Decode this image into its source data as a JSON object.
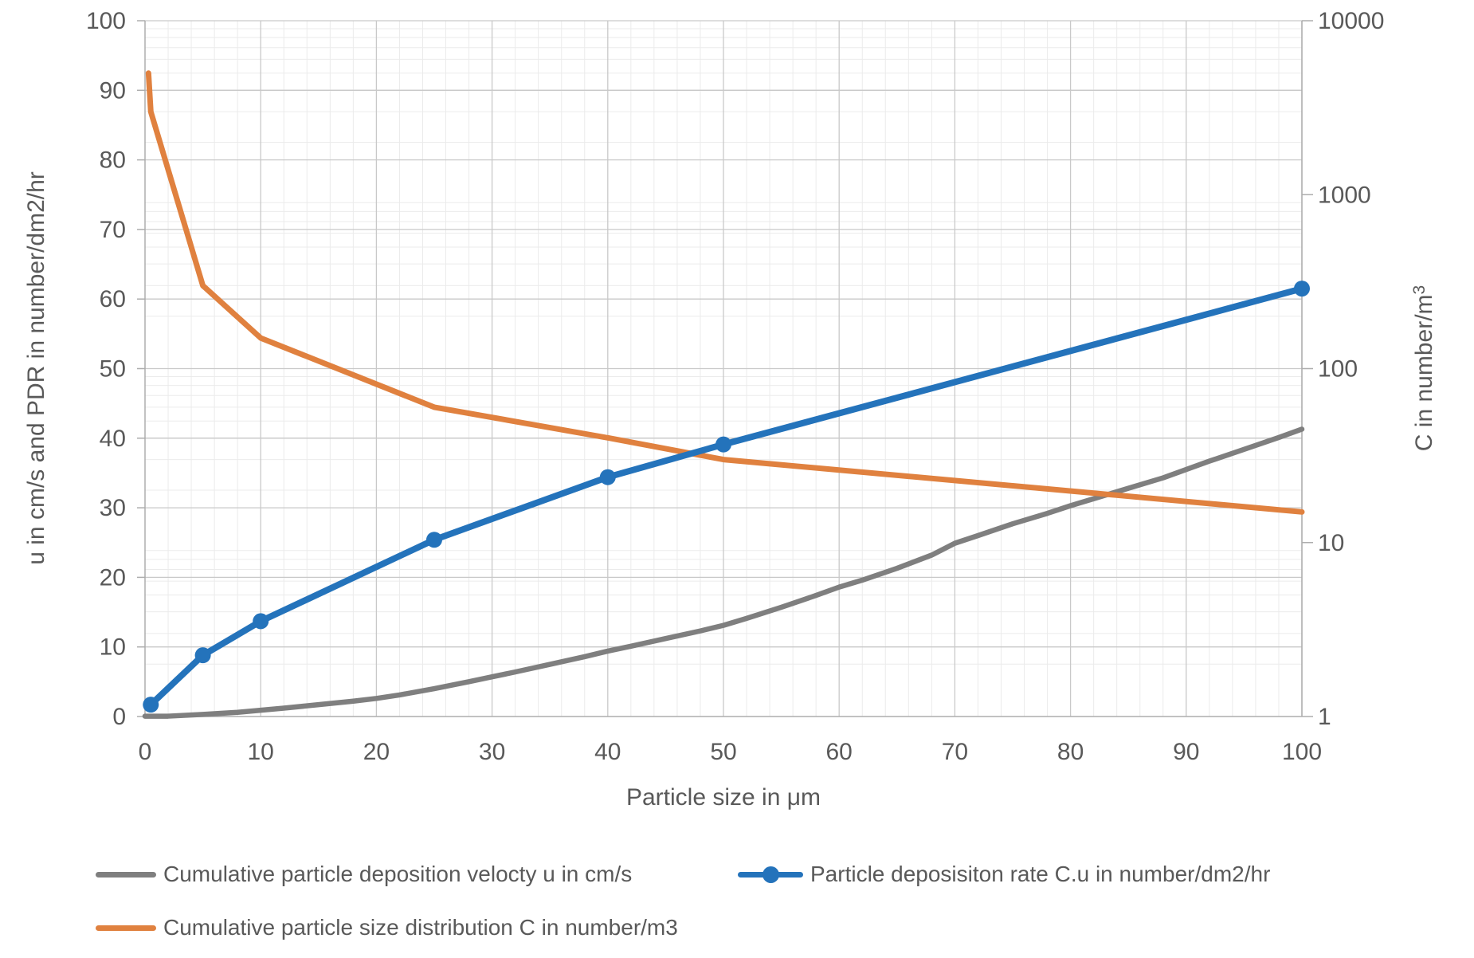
{
  "chart_data": {
    "type": "line",
    "title": "",
    "x_axis": {
      "label": "Particle size in μm",
      "min": 0,
      "max": 100,
      "major_tick_step": 10,
      "minor_tick_step": 2,
      "tick_labels": [
        "0",
        "10",
        "20",
        "30",
        "40",
        "50",
        "60",
        "70",
        "80",
        "90",
        "100"
      ]
    },
    "y_axis_left": {
      "label": "u in cm/s and PDR in number/dm2/hr",
      "min": 0,
      "max": 100,
      "major_tick_step": 10,
      "tick_labels": [
        "0",
        "10",
        "20",
        "30",
        "40",
        "50",
        "60",
        "70",
        "80",
        "90",
        "100"
      ]
    },
    "y_axis_right": {
      "label": "C in number/m³",
      "scale": "log",
      "min": 1,
      "max": 10000,
      "tick_labels": [
        "1",
        "10",
        "100",
        "1000",
        "10000"
      ]
    },
    "grid": {
      "major": true,
      "minor": true,
      "major_color": "#c9c9c9",
      "minor_color": "#ebebeb"
    },
    "axis_line_color": "#adadad",
    "text_color": "#595959",
    "series": [
      {
        "id": "u",
        "name": "Cumulative particle deposition velocty u in cm/s",
        "color": "#7f7f7f",
        "axis": "left",
        "marker": false,
        "x": [
          0,
          2,
          5,
          8,
          10,
          12,
          15,
          18,
          20,
          22,
          25,
          28,
          30,
          32,
          35,
          38,
          40,
          42,
          45,
          48,
          50,
          52,
          55,
          58,
          60,
          62,
          65,
          68,
          70,
          72,
          75,
          78,
          80,
          82,
          85,
          88,
          90,
          92,
          95,
          98,
          100
        ],
        "y": [
          0.05,
          0.05,
          0.3,
          0.6,
          0.9,
          1.2,
          1.7,
          2.2,
          2.6,
          3.1,
          4.0,
          5.0,
          5.7,
          6.4,
          7.5,
          8.6,
          9.4,
          10.1,
          11.2,
          12.3,
          13.1,
          14.1,
          15.7,
          17.4,
          18.6,
          19.6,
          21.3,
          23.2,
          24.9,
          26.0,
          27.7,
          29.2,
          30.3,
          31.3,
          32.8,
          34.3,
          35.5,
          36.7,
          38.4,
          40.1,
          41.3
        ]
      },
      {
        "id": "cu",
        "name": "Particle deposisiton rate C.u in number/dm2/hr",
        "color": "#2473bb",
        "axis": "left",
        "marker": true,
        "x": [
          0.5,
          5,
          10,
          25,
          40,
          50,
          100
        ],
        "y": [
          1.7,
          8.8,
          13.7,
          25.4,
          34.4,
          39.1,
          61.5
        ]
      },
      {
        "id": "c",
        "name": "Cumulative particle size distribution C in number/m3",
        "color": "#e0813f",
        "axis": "right",
        "marker": false,
        "x": [
          0.3,
          0.5,
          5,
          10,
          25,
          40,
          50,
          100
        ],
        "y": [
          5000,
          3000,
          300,
          150,
          60,
          40,
          30,
          15
        ]
      }
    ],
    "legend_position": "bottom"
  }
}
